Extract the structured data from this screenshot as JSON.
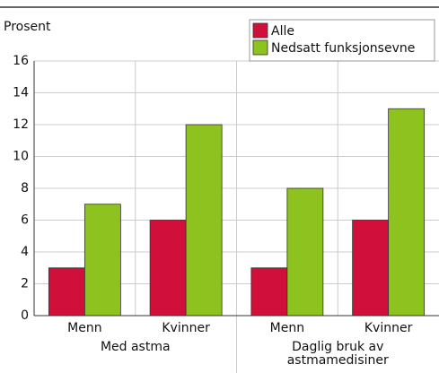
{
  "chart_data": {
    "type": "bar",
    "y_label": "Prosent",
    "categories": [
      "Menn",
      "Kvinner",
      "Menn",
      "Kvinner"
    ],
    "groups": [
      "Med astma",
      "Daglig bruk av astmamedisiner"
    ],
    "series": [
      {
        "name": "Alle",
        "color": "#d0103a",
        "values": [
          3,
          6,
          3,
          6
        ]
      },
      {
        "name": "Nedsatt funksjonsevne",
        "color": "#8dc21f",
        "values": [
          7,
          12,
          8,
          13
        ]
      }
    ],
    "ylim": [
      0,
      16
    ],
    "yticks": [
      0,
      2,
      4,
      6,
      8,
      10,
      12,
      14,
      16
    ],
    "grid": true,
    "legend": "top-right"
  }
}
